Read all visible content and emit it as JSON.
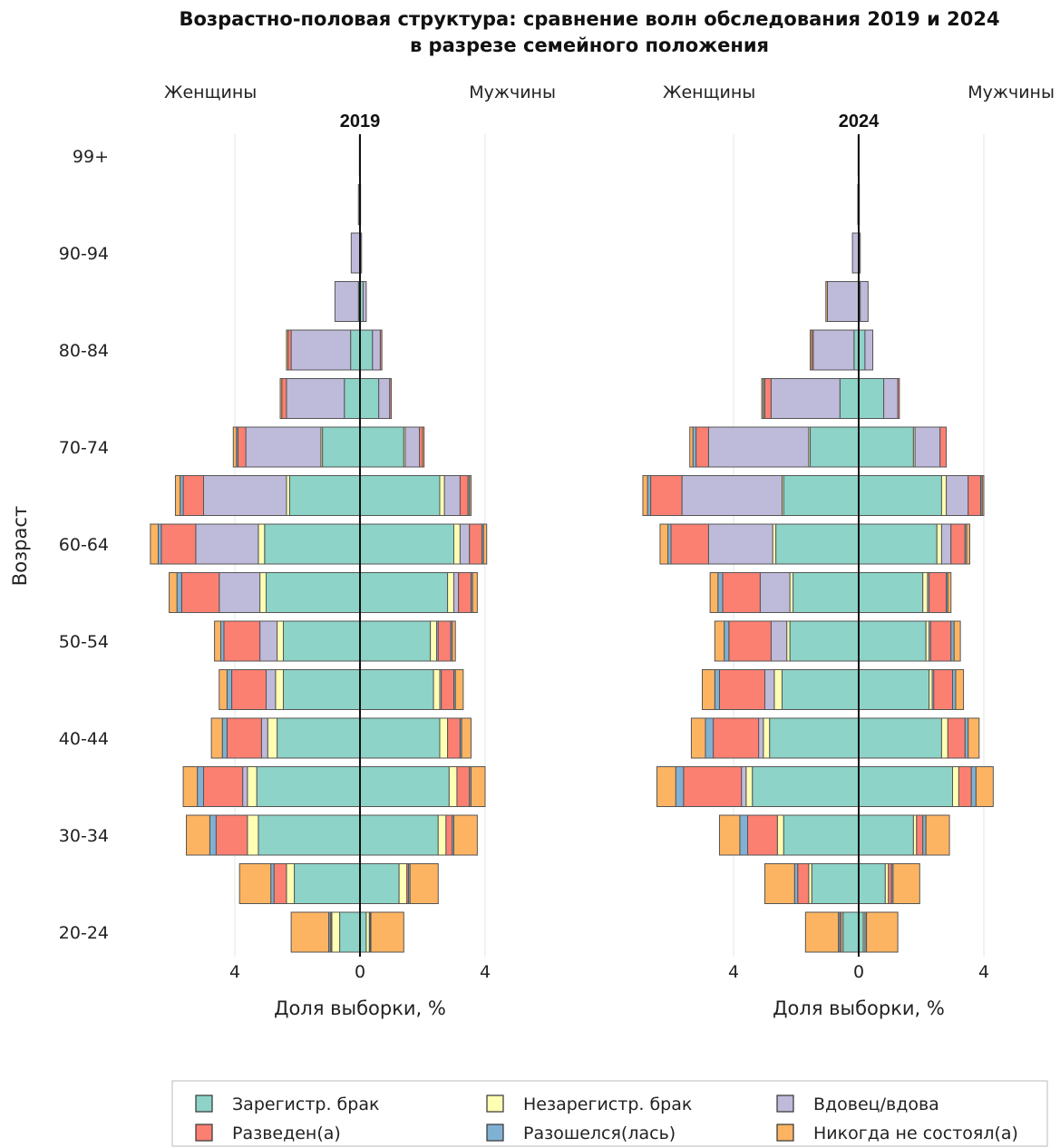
{
  "chart_data": {
    "type": "bar",
    "subtype": "population-pyramid-stacked",
    "title_line1": "Возрастно-половая структура: сравнение волн обследования 2019 и 2024",
    "title_line2": "в разрезе семейного положения",
    "ylabel": "Возраст",
    "xlabel": "Доля выборки, %",
    "left_side_label": "Женщины",
    "right_side_label": "Мужчины",
    "xlim": [
      -6.7,
      4.1
    ],
    "x_ticks": [
      "4",
      "0",
      "4"
    ],
    "y_tick_labels": [
      "20-24",
      "30-34",
      "40-44",
      "50-54",
      "60-64",
      "70-74",
      "80-84",
      "90-94",
      "99+"
    ],
    "age_groups": [
      "20-24",
      "25-29",
      "30-34",
      "35-39",
      "40-44",
      "45-49",
      "50-54",
      "55-59",
      "60-64",
      "65-69",
      "70-74",
      "75-79",
      "80-84",
      "85-89",
      "90-94",
      "95-99",
      "99+"
    ],
    "categories": [
      "Зарегистр. брак",
      "Незарегистр. брак",
      "Вдовец/вдова",
      "Разведен(а)",
      "Разошелся(лась)",
      "Никогда не состоял(а)"
    ],
    "colors": {
      "Зарегистр. брак": "#8dd3c7",
      "Незарегистр. брак": "#ffffb3",
      "Вдовец/вдова": "#bebada",
      "Разведен(а)": "#fb8072",
      "Разошелся(лась)": "#80b1d3",
      "Никогда не состоял(а)": "#fdb462"
    },
    "legend": [
      {
        "label": "Зарегистр. брак",
        "color": "#8dd3c7"
      },
      {
        "label": "Незарегистр. брак",
        "color": "#ffffb3"
      },
      {
        "label": "Вдовец/вдова",
        "color": "#bebada"
      },
      {
        "label": "Разведен(а)",
        "color": "#fb8072"
      },
      {
        "label": "Разошелся(лась)",
        "color": "#80b1d3"
      },
      {
        "label": "Никогда не состоял(а)",
        "color": "#fdb462"
      }
    ],
    "legend_position": "bottom",
    "grid": true,
    "panels": [
      {
        "title": "2019",
        "women": [
          [
            0.65,
            0.25,
            0.01,
            0.04,
            0.05,
            1.2
          ],
          [
            2.1,
            0.25,
            0.0,
            0.4,
            0.1,
            1.0
          ],
          [
            3.25,
            0.35,
            0.0,
            1.0,
            0.2,
            0.75
          ],
          [
            3.3,
            0.3,
            0.15,
            1.25,
            0.2,
            0.45
          ],
          [
            2.65,
            0.3,
            0.2,
            1.1,
            0.15,
            0.35
          ],
          [
            2.45,
            0.25,
            0.3,
            1.1,
            0.15,
            0.25
          ],
          [
            2.45,
            0.2,
            0.55,
            1.15,
            0.1,
            0.2
          ],
          [
            3.0,
            0.2,
            1.3,
            1.2,
            0.15,
            0.25
          ],
          [
            3.05,
            0.2,
            2.0,
            1.1,
            0.1,
            0.25
          ],
          [
            2.25,
            0.1,
            2.65,
            0.65,
            0.1,
            0.15
          ],
          [
            1.2,
            0.05,
            2.4,
            0.25,
            0.05,
            0.1
          ],
          [
            0.5,
            0.0,
            1.85,
            0.15,
            0.0,
            0.05
          ],
          [
            0.3,
            0.0,
            1.9,
            0.1,
            0.0,
            0.05
          ],
          [
            0.05,
            0.0,
            0.75,
            0.0,
            0.0,
            0.0
          ],
          [
            0.0,
            0.0,
            0.28,
            0.0,
            0.0,
            0.0
          ],
          [
            0.0,
            0.0,
            0.05,
            0.0,
            0.0,
            0.0
          ],
          [
            0.0,
            0.0,
            0.02,
            0.0,
            0.0,
            0.0
          ]
        ],
        "men": [
          [
            0.2,
            0.1,
            0.0,
            0.02,
            0.03,
            1.05
          ],
          [
            1.25,
            0.25,
            0.0,
            0.05,
            0.05,
            0.9
          ],
          [
            2.5,
            0.25,
            0.0,
            0.2,
            0.05,
            0.75
          ],
          [
            2.85,
            0.25,
            0.0,
            0.4,
            0.05,
            0.45
          ],
          [
            2.55,
            0.25,
            0.0,
            0.4,
            0.05,
            0.3
          ],
          [
            2.35,
            0.2,
            0.05,
            0.4,
            0.05,
            0.25
          ],
          [
            2.25,
            0.2,
            0.05,
            0.4,
            0.05,
            0.1
          ],
          [
            2.8,
            0.2,
            0.15,
            0.4,
            0.05,
            0.15
          ],
          [
            3.0,
            0.2,
            0.3,
            0.4,
            0.05,
            0.1
          ],
          [
            2.55,
            0.15,
            0.5,
            0.25,
            0.05,
            0.05
          ],
          [
            1.4,
            0.05,
            0.45,
            0.1,
            0.0,
            0.05
          ],
          [
            0.6,
            0.0,
            0.35,
            0.05,
            0.0,
            0.0
          ],
          [
            0.4,
            0.0,
            0.25,
            0.05,
            0.0,
            0.0
          ],
          [
            0.1,
            0.0,
            0.1,
            0.0,
            0.0,
            0.0
          ],
          [
            0.0,
            0.0,
            0.05,
            0.0,
            0.0,
            0.0
          ],
          [
            0.0,
            0.0,
            0.02,
            0.0,
            0.0,
            0.0
          ],
          [
            0.0,
            0.0,
            0.01,
            0.0,
            0.0,
            0.0
          ]
        ]
      },
      {
        "title": "2024",
        "women": [
          [
            0.5,
            0.05,
            0.0,
            0.05,
            0.05,
            1.05
          ],
          [
            1.5,
            0.1,
            0.0,
            0.35,
            0.1,
            0.95
          ],
          [
            2.4,
            0.2,
            0.0,
            0.95,
            0.25,
            0.65
          ],
          [
            3.4,
            0.2,
            0.15,
            1.85,
            0.25,
            0.6
          ],
          [
            2.85,
            0.2,
            0.15,
            1.45,
            0.25,
            0.45
          ],
          [
            2.45,
            0.25,
            0.3,
            1.45,
            0.15,
            0.4
          ],
          [
            2.2,
            0.1,
            0.5,
            1.35,
            0.15,
            0.3
          ],
          [
            2.1,
            0.1,
            0.95,
            1.2,
            0.15,
            0.25
          ],
          [
            2.65,
            0.1,
            2.05,
            1.2,
            0.1,
            0.25
          ],
          [
            2.4,
            0.05,
            3.2,
            1.0,
            0.1,
            0.15
          ],
          [
            1.55,
            0.05,
            3.2,
            0.4,
            0.1,
            0.1
          ],
          [
            0.6,
            0.0,
            2.2,
            0.2,
            0.05,
            0.05
          ],
          [
            0.15,
            0.0,
            1.3,
            0.05,
            0.0,
            0.05
          ],
          [
            0.0,
            0.0,
            1.0,
            0.0,
            0.0,
            0.05
          ],
          [
            0.0,
            0.0,
            0.2,
            0.0,
            0.0,
            0.0
          ],
          [
            0.0,
            0.0,
            0.03,
            0.0,
            0.0,
            0.0
          ],
          [
            0.0,
            0.0,
            0.02,
            0.0,
            0.0,
            0.0
          ]
        ],
        "men": [
          [
            0.15,
            0.05,
            0.0,
            0.0,
            0.05,
            1.0
          ],
          [
            0.85,
            0.1,
            0.0,
            0.1,
            0.05,
            0.85
          ],
          [
            1.75,
            0.1,
            0.0,
            0.2,
            0.1,
            0.75
          ],
          [
            3.0,
            0.2,
            0.0,
            0.4,
            0.15,
            0.55
          ],
          [
            2.65,
            0.2,
            0.0,
            0.55,
            0.1,
            0.35
          ],
          [
            2.25,
            0.1,
            0.05,
            0.6,
            0.1,
            0.25
          ],
          [
            2.15,
            0.1,
            0.05,
            0.65,
            0.1,
            0.2
          ],
          [
            2.05,
            0.15,
            0.05,
            0.55,
            0.05,
            0.1
          ],
          [
            2.5,
            0.15,
            0.3,
            0.45,
            0.05,
            0.1
          ],
          [
            2.65,
            0.15,
            0.7,
            0.4,
            0.05,
            0.05
          ],
          [
            1.75,
            0.05,
            0.8,
            0.2,
            0.0,
            0.0
          ],
          [
            0.8,
            0.0,
            0.45,
            0.05,
            0.0,
            0.0
          ],
          [
            0.2,
            0.0,
            0.25,
            0.0,
            0.0,
            0.0
          ],
          [
            0.05,
            0.0,
            0.25,
            0.0,
            0.0,
            0.0
          ],
          [
            0.0,
            0.0,
            0.05,
            0.0,
            0.0,
            0.0
          ],
          [
            0.0,
            0.0,
            0.02,
            0.0,
            0.0,
            0.0
          ],
          [
            0.0,
            0.0,
            0.01,
            0.0,
            0.0,
            0.0
          ]
        ]
      }
    ]
  }
}
